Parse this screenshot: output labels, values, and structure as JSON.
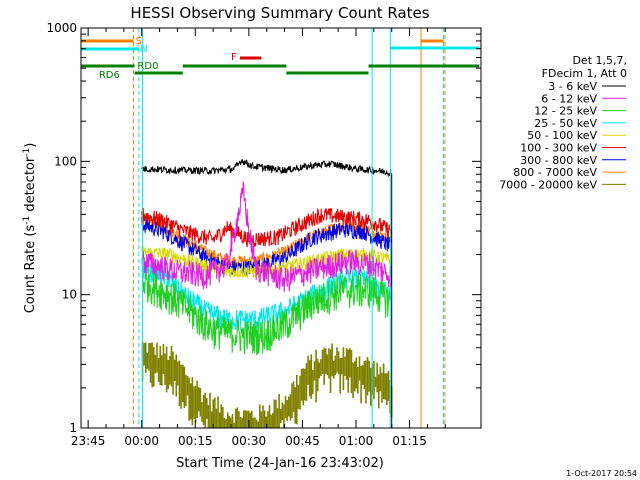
{
  "chart_data": {
    "type": "line",
    "title": "HESSI Observing Summary Count Rates",
    "xlabel": "Start Time (24-Jan-16 23:43:02)",
    "ylabel_main": "Count Rate (s",
    "ylabel_sup1": "-1",
    "ylabel_mid": " detector",
    "ylabel_sup2": "-1",
    "ylabel_end": ")",
    "yscale": "log",
    "ylim": [
      1,
      1000
    ],
    "xlim_minutes": [
      -17,
      95
    ],
    "x_ticks": [
      {
        "m": -15,
        "label": "23:45"
      },
      {
        "m": 0,
        "label": "00:00"
      },
      {
        "m": 15,
        "label": "00:15"
      },
      {
        "m": 30,
        "label": "00:30"
      },
      {
        "m": 45,
        "label": "00:45"
      },
      {
        "m": 60,
        "label": "01:00"
      },
      {
        "m": 75,
        "label": "01:15"
      }
    ],
    "y_ticks": [
      {
        "v": 1,
        "label": "1"
      },
      {
        "v": 10,
        "label": "10"
      },
      {
        "v": 100,
        "label": "100"
      },
      {
        "v": 1000,
        "label": "1000"
      }
    ],
    "legend": {
      "header1": "Det 1,5,7,",
      "header2": "FDecim 1, Att 0",
      "items": [
        {
          "label": "3 - 6 keV",
          "color": "#000000"
        },
        {
          "label": "6 - 12 keV",
          "color": "#e020e0"
        },
        {
          "label": "12 - 25 keV",
          "color": "#20d020"
        },
        {
          "label": "25 - 50 keV",
          "color": "#00e8e8"
        },
        {
          "label": "50 - 100 keV",
          "color": "#d8d800"
        },
        {
          "label": "100 - 300 keV",
          "color": "#e00000"
        },
        {
          "label": "300 - 800 keV",
          "color": "#0000e0"
        },
        {
          "label": "800 - 7000 keV",
          "color": "#ff8000"
        },
        {
          "label": "7000 - 20000 keV",
          "color": "#808000"
        }
      ]
    },
    "flags": {
      "S": {
        "label": "S",
        "color": "#ff8000"
      },
      "N": {
        "label": "N",
        "color": "#00e8e8"
      },
      "F": {
        "label": "F",
        "color": "#e00000"
      },
      "RD0": {
        "label": "RD0",
        "color": "#008000"
      },
      "RD6": {
        "label": "RD6",
        "color": "#008000"
      }
    },
    "series_keypoints": {
      "3-6": [
        [
          0,
          88
        ],
        [
          10,
          86
        ],
        [
          20,
          85
        ],
        [
          26,
          88
        ],
        [
          28,
          102
        ],
        [
          31,
          92
        ],
        [
          40,
          86
        ],
        [
          48,
          93
        ],
        [
          53,
          96
        ],
        [
          60,
          88
        ],
        [
          68,
          84
        ],
        [
          70,
          82
        ]
      ],
      "6-12": [
        [
          0,
          18
        ],
        [
          10,
          15
        ],
        [
          18,
          14
        ],
        [
          24,
          17
        ],
        [
          27,
          40
        ],
        [
          28.5,
          60
        ],
        [
          30,
          30
        ],
        [
          32,
          16
        ],
        [
          40,
          13
        ],
        [
          50,
          16
        ],
        [
          58,
          18
        ],
        [
          64,
          17
        ],
        [
          70,
          14
        ]
      ],
      "12-25": [
        [
          0,
          13
        ],
        [
          8,
          10
        ],
        [
          15,
          7
        ],
        [
          20,
          5.5
        ],
        [
          28,
          5
        ],
        [
          34,
          5
        ],
        [
          40,
          6
        ],
        [
          48,
          9
        ],
        [
          56,
          11
        ],
        [
          64,
          11
        ],
        [
          70,
          9
        ]
      ],
      "25-50": [
        [
          0,
          16
        ],
        [
          6,
          14
        ],
        [
          12,
          10
        ],
        [
          18,
          7.5
        ],
        [
          24,
          6.5
        ],
        [
          32,
          6.5
        ],
        [
          40,
          7.5
        ],
        [
          48,
          10
        ],
        [
          56,
          13
        ],
        [
          62,
          13
        ],
        [
          70,
          10
        ]
      ],
      "50-100": [
        [
          0,
          21
        ],
        [
          8,
          20
        ],
        [
          16,
          17
        ],
        [
          24,
          15
        ],
        [
          32,
          15
        ],
        [
          40,
          16
        ],
        [
          48,
          18
        ],
        [
          56,
          20
        ],
        [
          64,
          20
        ],
        [
          70,
          18
        ]
      ],
      "100-300": [
        [
          0,
          40
        ],
        [
          6,
          36
        ],
        [
          12,
          30
        ],
        [
          20,
          26
        ],
        [
          24,
          32
        ],
        [
          30,
          26
        ],
        [
          38,
          27
        ],
        [
          44,
          33
        ],
        [
          50,
          40
        ],
        [
          58,
          38
        ],
        [
          64,
          36
        ],
        [
          70,
          30
        ]
      ],
      "300-800": [
        [
          0,
          34
        ],
        [
          6,
          30
        ],
        [
          12,
          24
        ],
        [
          18,
          19
        ],
        [
          24,
          16
        ],
        [
          32,
          16
        ],
        [
          40,
          19
        ],
        [
          48,
          27
        ],
        [
          56,
          31
        ],
        [
          62,
          30
        ],
        [
          70,
          23
        ]
      ],
      "800-7000": [
        [
          0,
          38
        ],
        [
          6,
          33
        ],
        [
          12,
          26
        ],
        [
          18,
          21
        ],
        [
          24,
          18
        ],
        [
          32,
          18
        ],
        [
          40,
          21
        ],
        [
          48,
          28
        ],
        [
          56,
          33
        ],
        [
          62,
          32
        ],
        [
          70,
          26
        ]
      ],
      "7000-20000": [
        [
          0,
          3.5
        ],
        [
          8,
          3
        ],
        [
          12,
          2.2
        ],
        [
          18,
          1.4
        ],
        [
          24,
          1.1
        ],
        [
          32,
          1.05
        ],
        [
          40,
          1.4
        ],
        [
          46,
          2.5
        ],
        [
          52,
          3.2
        ],
        [
          58,
          3
        ],
        [
          64,
          2.5
        ],
        [
          70,
          2
        ]
      ]
    }
  },
  "footer": {
    "timestamp": "1-Oct-2017 20:54"
  }
}
